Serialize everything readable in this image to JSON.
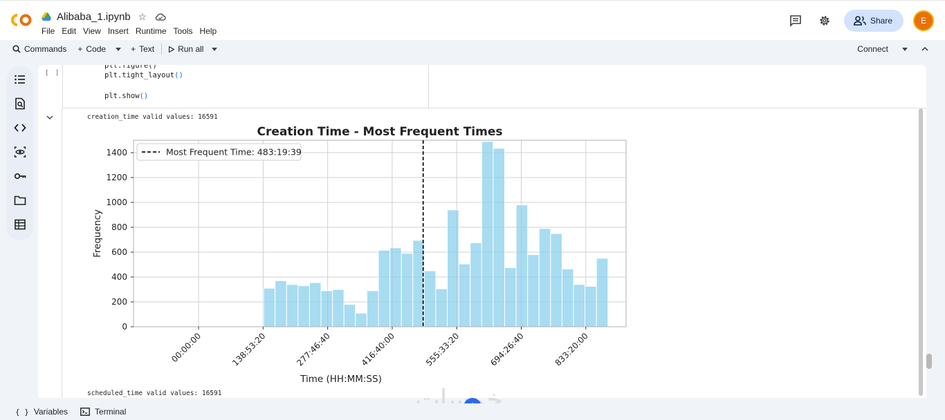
{
  "header": {
    "doc_title": "Alibaba_1.ipynb",
    "menu": [
      "File",
      "Edit",
      "View",
      "Insert",
      "Runtime",
      "Tools",
      "Help"
    ],
    "share_label": "Share",
    "avatar_letter": "E",
    "icons": [
      "colab-logo-icon",
      "drive-icon",
      "star-icon",
      "cloud-icon",
      "comment-icon",
      "gear-icon",
      "people-icon"
    ]
  },
  "toolbar": {
    "commands_label": "Commands",
    "code_label": "Code",
    "text_label": "Text",
    "run_all_label": "Run all",
    "connect_label": "Connect"
  },
  "rail": {
    "icons": [
      "toc-icon",
      "find-icon",
      "code-snippets-icon",
      "secrets-eye-icon",
      "key-icon",
      "folder-icon",
      "table-icon"
    ]
  },
  "cell": {
    "bracket": "[ ]",
    "code_lines": [
      {
        "fn": "plt.tight_layout",
        "paren": "()"
      },
      {
        "fn": "plt.show",
        "paren": "()"
      }
    ]
  },
  "output": {
    "line1": "creation_time valid values: 16591",
    "line2": "scheduled_time valid values: 16591"
  },
  "chart_data": {
    "type": "bar",
    "title": "Creation Time - Most Frequent Times",
    "xlabel": "Time (HH:MM:SS)",
    "ylabel": "Frequency",
    "ylim": [
      0,
      1500
    ],
    "yticks": [
      0,
      200,
      400,
      600,
      800,
      1000,
      1200,
      1400
    ],
    "xtick_labels": [
      "00:00:00",
      "138:53:20",
      "277:46:40",
      "416:40:00",
      "555:33:20",
      "694:26:40",
      "833:20:00"
    ],
    "xtick_hours": [
      0,
      138.889,
      277.778,
      416.667,
      555.556,
      694.444,
      833.333
    ],
    "xlim_hours": [
      -140,
      920
    ],
    "bins_start_hours": 140,
    "bin_width_hours": 24.7,
    "values": [
      310,
      370,
      340,
      330,
      355,
      290,
      300,
      180,
      110,
      290,
      615,
      635,
      590,
      695,
      450,
      305,
      940,
      505,
      675,
      1490,
      1435,
      475,
      980,
      580,
      790,
      750,
      465,
      340,
      325,
      550
    ],
    "bar_color": "#87ceeb",
    "grid": true,
    "legend_position": "upper-left",
    "legend_entry": "Most Frequent Time: 483:19:39",
    "vline_hours": 483.33
  },
  "footer": {
    "variables_label": "Variables",
    "terminal_label": "Terminal",
    "watermark": "خمسات"
  }
}
